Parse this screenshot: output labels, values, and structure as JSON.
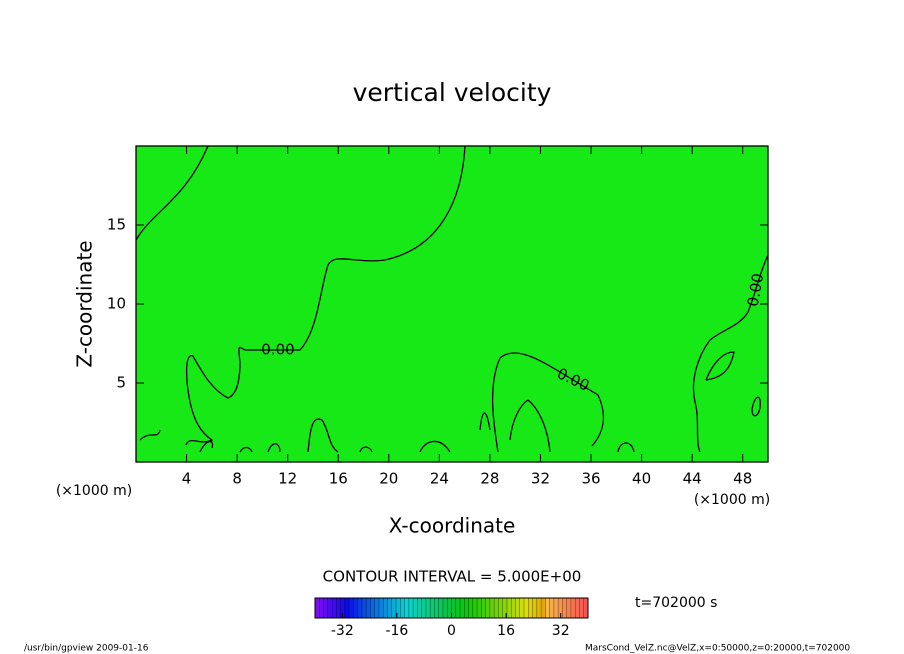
{
  "chart_data": {
    "type": "contour",
    "title": "vertical velocity",
    "xlabel": "X-coordinate",
    "ylabel": "Z-coordinate",
    "x_unit_left": "(×1000 m)",
    "x_unit_right": "(×1000 m)",
    "xlim": [
      0,
      50
    ],
    "ylim": [
      0,
      20
    ],
    "xticks": [
      4,
      8,
      12,
      16,
      20,
      24,
      28,
      32,
      36,
      40,
      44,
      48
    ],
    "yticks": [
      5,
      10,
      15
    ],
    "field_color": "#16e916",
    "contours": {
      "values": [
        0,
        0,
        0
      ],
      "value_labels": [
        "0.00",
        "0.00",
        "0.00"
      ],
      "color": "#000000"
    },
    "contour_interval": "CONTOUR INTERVAL = 5.000E+00",
    "time_label": "t=702000 s",
    "colorbar": {
      "clim": [
        -40,
        40
      ],
      "ticks": [
        -32,
        -16,
        0,
        16,
        32
      ]
    },
    "footer_left": "/usr/bin/gpview   2009-01-16",
    "footer_right": "MarsCond_VelZ.nc@VelZ,x=0:50000,z=0:20000,t=702000"
  }
}
